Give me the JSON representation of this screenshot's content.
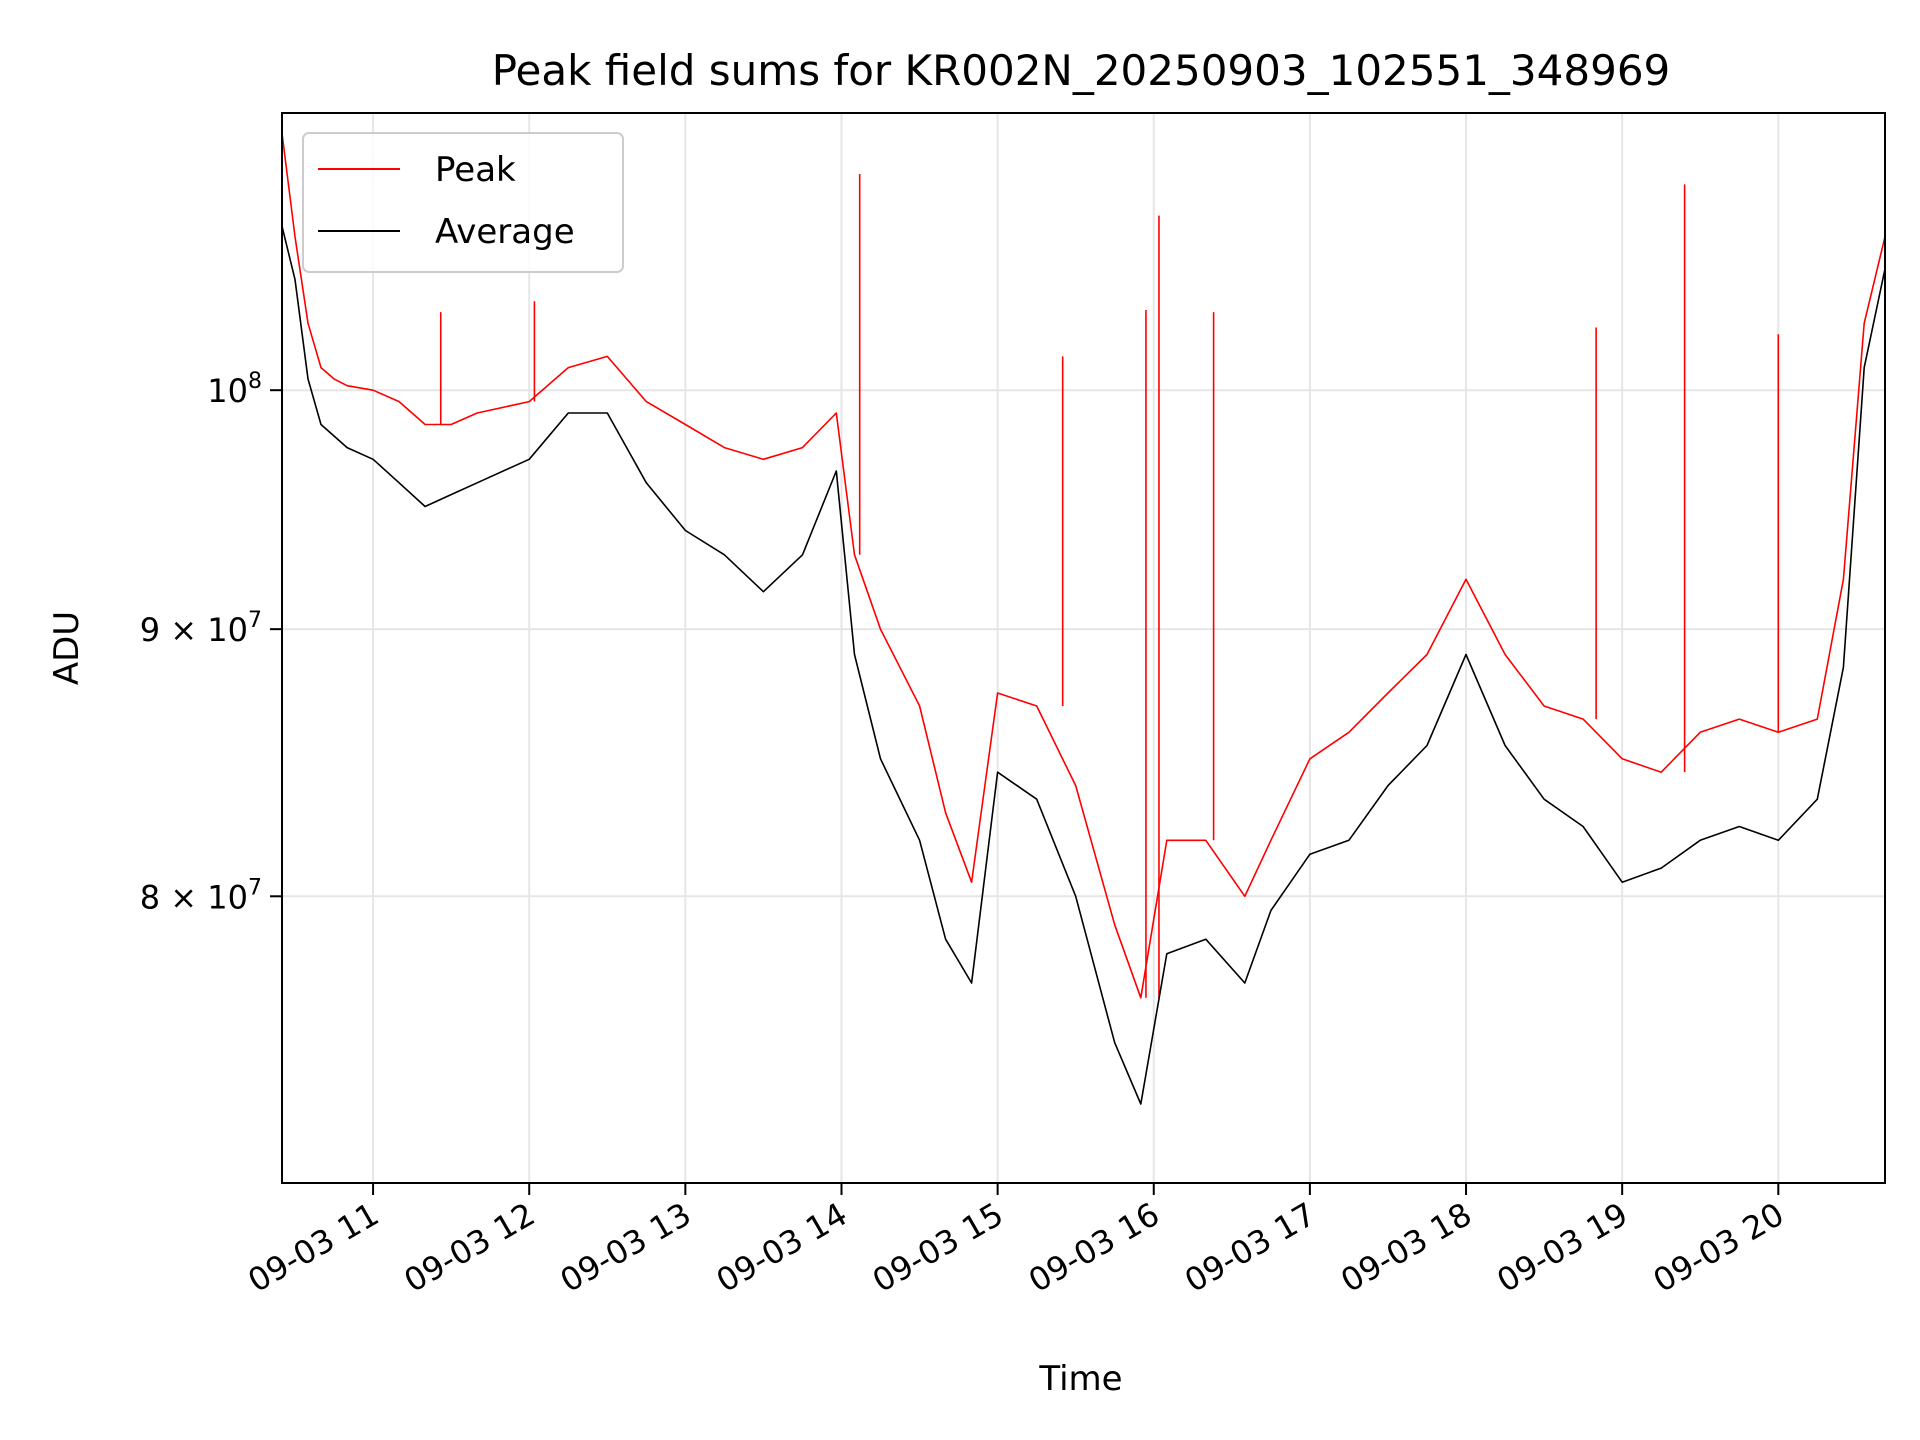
{
  "chart_data": {
    "type": "line",
    "title": "Peak field sums for KR002N_20250903_102551_348969",
    "xlabel": "Time",
    "ylabel": "ADU",
    "yscale": "log",
    "grid": true,
    "legend_position": "upper-left",
    "xlim": [
      "2025-09-03 10:25",
      "2025-09-03 20:41"
    ],
    "ylim": [
      70500000,
      113000000
    ],
    "x_ticks": [
      {
        "value": "2025-09-03 11:00",
        "label": "09-03 11"
      },
      {
        "value": "2025-09-03 12:00",
        "label": "09-03 12"
      },
      {
        "value": "2025-09-03 13:00",
        "label": "09-03 13"
      },
      {
        "value": "2025-09-03 14:00",
        "label": "09-03 14"
      },
      {
        "value": "2025-09-03 15:00",
        "label": "09-03 15"
      },
      {
        "value": "2025-09-03 16:00",
        "label": "09-03 16"
      },
      {
        "value": "2025-09-03 17:00",
        "label": "09-03 17"
      },
      {
        "value": "2025-09-03 18:00",
        "label": "09-03 18"
      },
      {
        "value": "2025-09-03 19:00",
        "label": "09-03 19"
      },
      {
        "value": "2025-09-03 20:00",
        "label": "09-03 20"
      }
    ],
    "y_ticks": [
      {
        "value": 80000000,
        "mantissa": "8",
        "exponent": "7"
      },
      {
        "value": 90000000,
        "mantissa": "9",
        "exponent": "7"
      },
      {
        "value": 100000000,
        "mantissa": "",
        "exponent": "8"
      }
    ],
    "series": [
      {
        "name": "Peak",
        "color": "#ff0000",
        "x": [
          "2025-09-03 10:25",
          "2025-09-03 10:30",
          "2025-09-03 10:35",
          "2025-09-03 10:40",
          "2025-09-03 10:45",
          "2025-09-03 10:50",
          "2025-09-03 11:00",
          "2025-09-03 11:10",
          "2025-09-03 11:20",
          "2025-09-03 11:30",
          "2025-09-03 11:40",
          "2025-09-03 12:00",
          "2025-09-03 12:15",
          "2025-09-03 12:30",
          "2025-09-03 12:45",
          "2025-09-03 13:00",
          "2025-09-03 13:15",
          "2025-09-03 13:30",
          "2025-09-03 13:45",
          "2025-09-03 13:58",
          "2025-09-03 14:05",
          "2025-09-03 14:15",
          "2025-09-03 14:30",
          "2025-09-03 14:40",
          "2025-09-03 14:50",
          "2025-09-03 15:00",
          "2025-09-03 15:15",
          "2025-09-03 15:30",
          "2025-09-03 15:45",
          "2025-09-03 15:55",
          "2025-09-03 16:05",
          "2025-09-03 16:20",
          "2025-09-03 16:35",
          "2025-09-03 16:45",
          "2025-09-03 17:00",
          "2025-09-03 17:15",
          "2025-09-03 17:30",
          "2025-09-03 17:45",
          "2025-09-03 18:00",
          "2025-09-03 18:15",
          "2025-09-03 18:30",
          "2025-09-03 18:45",
          "2025-09-03 19:00",
          "2025-09-03 19:15",
          "2025-09-03 19:30",
          "2025-09-03 19:45",
          "2025-09-03 20:00",
          "2025-09-03 20:15",
          "2025-09-03 20:25",
          "2025-09-03 20:33",
          "2025-09-03 20:41"
        ],
        "values": [
          112000000,
          107000000,
          103000000,
          101000000,
          100500000,
          100200000,
          100000000,
          99500000,
          98500000,
          98500000,
          99000000,
          99500000,
          101000000,
          101500000,
          99500000,
          98500000,
          97500000,
          97000000,
          97500000,
          99000000,
          93000000,
          90000000,
          87000000,
          83000000,
          80500000,
          87500000,
          87000000,
          84000000,
          79000000,
          76500000,
          82000000,
          82000000,
          80000000,
          82000000,
          85000000,
          86000000,
          87500000,
          89000000,
          92000000,
          89000000,
          87000000,
          86500000,
          85000000,
          84500000,
          86000000,
          86500000,
          86000000,
          86500000,
          92000000,
          103000000,
          107000000
        ],
        "spikes": [
          {
            "x": "2025-09-03 11:26",
            "value": 103500000
          },
          {
            "x": "2025-09-03 12:02",
            "value": 104000000
          },
          {
            "x": "2025-09-03 14:07",
            "value": 110000000
          },
          {
            "x": "2025-09-03 15:25",
            "value": 101500000
          },
          {
            "x": "2025-09-03 15:57",
            "value": 103600000
          },
          {
            "x": "2025-09-03 16:02",
            "value": 108000000
          },
          {
            "x": "2025-09-03 16:23",
            "value": 103500000
          },
          {
            "x": "2025-09-03 18:50",
            "value": 102800000
          },
          {
            "x": "2025-09-03 19:24",
            "value": 109500000
          },
          {
            "x": "2025-09-03 20:00",
            "value": 102500000
          }
        ]
      },
      {
        "name": "Average",
        "color": "#000000",
        "x": [
          "2025-09-03 10:25",
          "2025-09-03 10:30",
          "2025-09-03 10:35",
          "2025-09-03 10:40",
          "2025-09-03 10:45",
          "2025-09-03 10:50",
          "2025-09-03 11:00",
          "2025-09-03 11:10",
          "2025-09-03 11:20",
          "2025-09-03 11:30",
          "2025-09-03 11:40",
          "2025-09-03 12:00",
          "2025-09-03 12:15",
          "2025-09-03 12:30",
          "2025-09-03 12:45",
          "2025-09-03 13:00",
          "2025-09-03 13:15",
          "2025-09-03 13:30",
          "2025-09-03 13:45",
          "2025-09-03 13:58",
          "2025-09-03 14:05",
          "2025-09-03 14:15",
          "2025-09-03 14:30",
          "2025-09-03 14:40",
          "2025-09-03 14:50",
          "2025-09-03 15:00",
          "2025-09-03 15:15",
          "2025-09-03 15:30",
          "2025-09-03 15:45",
          "2025-09-03 15:55",
          "2025-09-03 16:05",
          "2025-09-03 16:20",
          "2025-09-03 16:35",
          "2025-09-03 16:45",
          "2025-09-03 17:00",
          "2025-09-03 17:15",
          "2025-09-03 17:30",
          "2025-09-03 17:45",
          "2025-09-03 18:00",
          "2025-09-03 18:15",
          "2025-09-03 18:30",
          "2025-09-03 18:45",
          "2025-09-03 19:00",
          "2025-09-03 19:15",
          "2025-09-03 19:30",
          "2025-09-03 19:45",
          "2025-09-03 20:00",
          "2025-09-03 20:15",
          "2025-09-03 20:25",
          "2025-09-03 20:33",
          "2025-09-03 20:41"
        ],
        "values": [
          107500000,
          105000000,
          100500000,
          98500000,
          98000000,
          97500000,
          97000000,
          96000000,
          95000000,
          95500000,
          96000000,
          97000000,
          99000000,
          99000000,
          96000000,
          94000000,
          93000000,
          91500000,
          93000000,
          96500000,
          89000000,
          85000000,
          82000000,
          78500000,
          77000000,
          84500000,
          83500000,
          80000000,
          75000000,
          73000000,
          78000000,
          78500000,
          77000000,
          79500000,
          81500000,
          82000000,
          84000000,
          85500000,
          89000000,
          85500000,
          83500000,
          82500000,
          80500000,
          81000000,
          82000000,
          82500000,
          82000000,
          83500000,
          88500000,
          101000000,
          105500000
        ]
      }
    ]
  }
}
